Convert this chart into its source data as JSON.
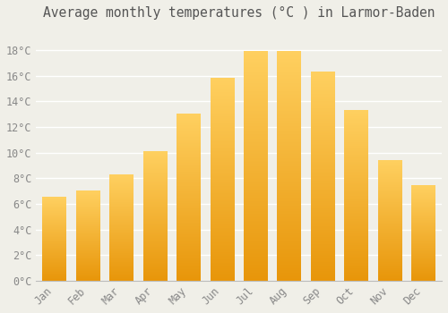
{
  "title": "Average monthly temperatures (°C ) in Larmor-Baden",
  "months": [
    "Jan",
    "Feb",
    "Mar",
    "Apr",
    "May",
    "Jun",
    "Jul",
    "Aug",
    "Sep",
    "Oct",
    "Nov",
    "Dec"
  ],
  "temperatures": [
    6.5,
    7.0,
    8.3,
    10.1,
    13.0,
    15.8,
    17.9,
    17.9,
    16.3,
    13.3,
    9.4,
    7.4
  ],
  "bar_color_bottom": "#E8960A",
  "bar_color_top": "#FFD060",
  "background_color": "#F0EFE8",
  "grid_color": "#FFFFFF",
  "tick_label_color": "#888888",
  "title_color": "#555555",
  "ytick_labels": [
    "0°C",
    "2°C",
    "4°C",
    "6°C",
    "8°C",
    "10°C",
    "12°C",
    "14°C",
    "16°C",
    "18°C"
  ],
  "ytick_values": [
    0,
    2,
    4,
    6,
    8,
    10,
    12,
    14,
    16,
    18
  ],
  "ylim": [
    0,
    19.8
  ],
  "title_fontsize": 10.5,
  "tick_fontsize": 8.5
}
